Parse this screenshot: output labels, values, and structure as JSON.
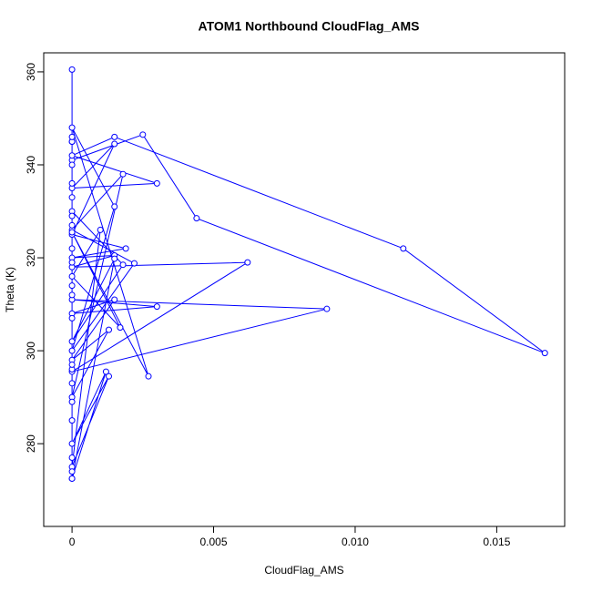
{
  "chart_data": {
    "type": "line",
    "title": "ATOM1 Northbound CloudFlag_AMS",
    "x_label": "CloudFlag_AMS",
    "y_label": "Theta (K)",
    "color": "#0000ff",
    "markers": true,
    "x": [
      0,
      0,
      0,
      0.0025,
      0.0044,
      0.0167,
      0.0117,
      0.0015,
      0,
      0.003,
      0,
      0.0015,
      0,
      0.0019,
      0,
      0.0015,
      0,
      0.0062,
      0,
      0.009,
      0,
      0.003,
      0,
      0.0015,
      0,
      0.0013,
      0,
      0.0018,
      0,
      0.0022,
      0,
      0.0015,
      0,
      0.0027,
      0,
      0.0017,
      0,
      0.001,
      0,
      0.0013,
      0,
      0.0012,
      0,
      0.0015,
      0,
      0.0018,
      0,
      0,
      0,
      0,
      0,
      0,
      0,
      0,
      0,
      0,
      0,
      0,
      0,
      0,
      0,
      0,
      0,
      0,
      0,
      0,
      0
    ],
    "values": [
      360.5,
      345,
      341,
      346.5,
      328.5,
      299.5,
      322,
      346,
      342,
      336,
      335,
      344.5,
      325,
      322,
      320,
      320.5,
      318,
      319,
      295.5,
      309,
      311,
      309.5,
      308,
      311,
      298,
      304.5,
      290,
      338,
      326,
      318.8,
      300,
      331,
      348,
      294.5,
      325.5,
      305,
      316,
      326,
      275,
      294.5,
      280,
      295.5,
      272.5,
      319.8,
      302,
      318.5,
      330,
      333,
      340,
      345,
      346,
      322,
      312,
      307,
      296,
      293,
      289,
      277,
      274,
      272.5,
      285,
      297,
      314,
      319,
      327,
      329,
      336
    ],
    "xlim": [
      -0.001,
      0.0174
    ],
    "ylim": [
      262.2,
      364.1
    ],
    "xticks": [
      0,
      {
        "value": 0.005,
        "label": "0.005"
      },
      {
        "value": 0.01,
        "label": "0.010"
      },
      {
        "value": 0.015,
        "label": "0.015"
      }
    ],
    "yticks": [
      280,
      300,
      320,
      340,
      360
    ]
  }
}
